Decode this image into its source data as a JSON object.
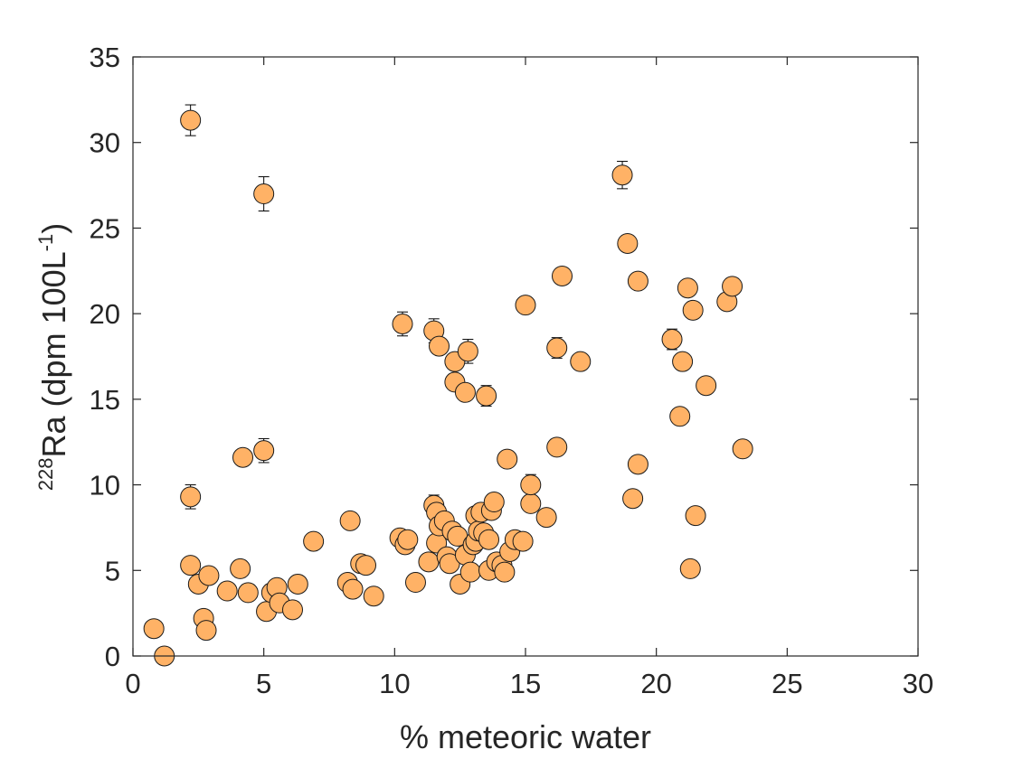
{
  "chart_data": {
    "type": "scatter",
    "title": "",
    "xlabel": "% meteoric water",
    "ylabel": {
      "sup1": "228",
      "main": "Ra (dpm 100L",
      "sup2": "-1",
      "close": ")"
    },
    "xlim": [
      0,
      30
    ],
    "ylim": [
      0,
      35
    ],
    "xticks": [
      0,
      5,
      10,
      15,
      20,
      25,
      30
    ],
    "yticks": [
      0,
      5,
      10,
      15,
      20,
      25,
      30,
      35
    ],
    "grid": false,
    "legend": "none",
    "marker_fill": "#ffb266",
    "marker_edge": "#1a1a1a",
    "series": [
      {
        "points": [
          {
            "x": 0.8,
            "y": 1.6
          },
          {
            "x": 1.2,
            "y": 0.0
          },
          {
            "x": 2.2,
            "y": 31.3,
            "err": 0.9
          },
          {
            "x": 2.2,
            "y": 9.3,
            "err": 0.7
          },
          {
            "x": 2.2,
            "y": 5.3
          },
          {
            "x": 2.5,
            "y": 4.2
          },
          {
            "x": 2.7,
            "y": 2.2
          },
          {
            "x": 2.8,
            "y": 1.5
          },
          {
            "x": 2.9,
            "y": 4.7
          },
          {
            "x": 3.6,
            "y": 3.8
          },
          {
            "x": 4.1,
            "y": 5.1,
            "err": 0.5
          },
          {
            "x": 4.2,
            "y": 11.6
          },
          {
            "x": 4.4,
            "y": 3.7
          },
          {
            "x": 5.0,
            "y": 27.0,
            "err": 1.0
          },
          {
            "x": 5.0,
            "y": 12.0,
            "err": 0.7
          },
          {
            "x": 5.1,
            "y": 2.6
          },
          {
            "x": 5.3,
            "y": 3.7
          },
          {
            "x": 5.5,
            "y": 4.0
          },
          {
            "x": 5.6,
            "y": 3.1
          },
          {
            "x": 6.1,
            "y": 2.7
          },
          {
            "x": 6.3,
            "y": 4.2
          },
          {
            "x": 6.9,
            "y": 6.7
          },
          {
            "x": 8.2,
            "y": 4.3
          },
          {
            "x": 8.3,
            "y": 7.9
          },
          {
            "x": 8.4,
            "y": 3.9
          },
          {
            "x": 8.7,
            "y": 5.4
          },
          {
            "x": 8.9,
            "y": 5.3
          },
          {
            "x": 9.2,
            "y": 3.5
          },
          {
            "x": 10.2,
            "y": 6.9
          },
          {
            "x": 10.3,
            "y": 19.4,
            "err": 0.7
          },
          {
            "x": 10.4,
            "y": 6.5
          },
          {
            "x": 10.5,
            "y": 6.8
          },
          {
            "x": 10.8,
            "y": 4.3
          },
          {
            "x": 11.3,
            "y": 5.5
          },
          {
            "x": 11.5,
            "y": 8.8,
            "err": 0.6
          },
          {
            "x": 11.5,
            "y": 19.0,
            "err": 0.7
          },
          {
            "x": 11.6,
            "y": 6.6
          },
          {
            "x": 11.6,
            "y": 8.4
          },
          {
            "x": 11.7,
            "y": 18.1
          },
          {
            "x": 11.7,
            "y": 7.6
          },
          {
            "x": 11.9,
            "y": 7.9
          },
          {
            "x": 12.0,
            "y": 5.8
          },
          {
            "x": 12.1,
            "y": 5.4
          },
          {
            "x": 12.2,
            "y": 7.3
          },
          {
            "x": 12.3,
            "y": 17.2
          },
          {
            "x": 12.3,
            "y": 16.0
          },
          {
            "x": 12.4,
            "y": 7.0
          },
          {
            "x": 12.5,
            "y": 4.2
          },
          {
            "x": 12.7,
            "y": 15.4
          },
          {
            "x": 12.7,
            "y": 5.9
          },
          {
            "x": 12.8,
            "y": 17.8,
            "err": 0.7
          },
          {
            "x": 12.9,
            "y": 4.9
          },
          {
            "x": 13.0,
            "y": 6.5
          },
          {
            "x": 13.1,
            "y": 6.7
          },
          {
            "x": 13.1,
            "y": 8.2
          },
          {
            "x": 13.2,
            "y": 7.3
          },
          {
            "x": 13.3,
            "y": 8.4
          },
          {
            "x": 13.4,
            "y": 7.2
          },
          {
            "x": 13.5,
            "y": 15.2,
            "err": 0.6
          },
          {
            "x": 13.6,
            "y": 5.0
          },
          {
            "x": 13.6,
            "y": 6.8
          },
          {
            "x": 13.7,
            "y": 8.5
          },
          {
            "x": 13.8,
            "y": 9.0
          },
          {
            "x": 13.9,
            "y": 5.5
          },
          {
            "x": 14.1,
            "y": 5.3
          },
          {
            "x": 14.2,
            "y": 4.9
          },
          {
            "x": 14.3,
            "y": 11.5
          },
          {
            "x": 14.4,
            "y": 6.1
          },
          {
            "x": 14.6,
            "y": 6.8
          },
          {
            "x": 14.9,
            "y": 6.7
          },
          {
            "x": 15.0,
            "y": 20.5
          },
          {
            "x": 15.2,
            "y": 8.9
          },
          {
            "x": 15.2,
            "y": 10.0,
            "err": 0.6
          },
          {
            "x": 15.8,
            "y": 8.1
          },
          {
            "x": 16.2,
            "y": 18.0,
            "err": 0.6
          },
          {
            "x": 16.2,
            "y": 12.2
          },
          {
            "x": 16.4,
            "y": 22.2
          },
          {
            "x": 17.1,
            "y": 17.2
          },
          {
            "x": 18.7,
            "y": 28.1,
            "err": 0.8
          },
          {
            "x": 18.9,
            "y": 24.1
          },
          {
            "x": 19.1,
            "y": 9.2
          },
          {
            "x": 19.3,
            "y": 21.9
          },
          {
            "x": 19.3,
            "y": 11.2
          },
          {
            "x": 20.6,
            "y": 18.5,
            "err": 0.6
          },
          {
            "x": 20.9,
            "y": 14.0
          },
          {
            "x": 21.0,
            "y": 17.2
          },
          {
            "x": 21.2,
            "y": 21.5
          },
          {
            "x": 21.3,
            "y": 5.1
          },
          {
            "x": 21.4,
            "y": 20.2
          },
          {
            "x": 21.5,
            "y": 8.2
          },
          {
            "x": 21.9,
            "y": 15.8
          },
          {
            "x": 22.7,
            "y": 20.7
          },
          {
            "x": 22.9,
            "y": 21.6
          },
          {
            "x": 23.3,
            "y": 12.1
          }
        ]
      }
    ]
  }
}
